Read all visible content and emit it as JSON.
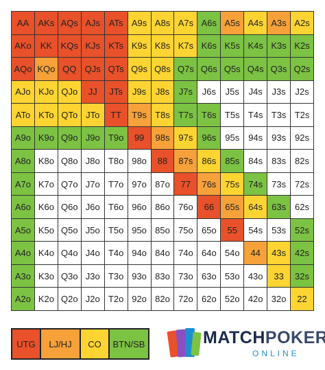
{
  "grid": {
    "hands": [
      [
        "AA",
        "AKs",
        "AQs",
        "AJs",
        "ATs",
        "A9s",
        "A8s",
        "A7s",
        "A6s",
        "A5s",
        "A4s",
        "A3s",
        "A2s"
      ],
      [
        "AKo",
        "KK",
        "KQs",
        "KJs",
        "KTs",
        "K9s",
        "K8s",
        "K7s",
        "K6s",
        "K5s",
        "K4s",
        "K3s",
        "K2s"
      ],
      [
        "AQo",
        "KQo",
        "QQ",
        "QJs",
        "QTs",
        "Q9s",
        "Q8s",
        "Q7s",
        "Q6s",
        "Q5s",
        "Q4s",
        "Q3s",
        "Q2s"
      ],
      [
        "AJo",
        "KJo",
        "QJo",
        "JJ",
        "JTs",
        "J9s",
        "J8s",
        "J7s",
        "J6s",
        "J5s",
        "J4s",
        "J3s",
        "J2s"
      ],
      [
        "ATo",
        "KTo",
        "QTo",
        "JTo",
        "TT",
        "T9s",
        "T8s",
        "T7s",
        "T6s",
        "T5s",
        "T4s",
        "T3s",
        "T2s"
      ],
      [
        "A9o",
        "K9o",
        "Q9o",
        "J9o",
        "T9o",
        "99",
        "98s",
        "97s",
        "96s",
        "95s",
        "94s",
        "93s",
        "92s"
      ],
      [
        "A8o",
        "K8o",
        "Q8o",
        "J8o",
        "T8o",
        "98o",
        "88",
        "87s",
        "86s",
        "85s",
        "84s",
        "83s",
        "82s"
      ],
      [
        "A7o",
        "K7o",
        "Q7o",
        "J7o",
        "T7o",
        "97o",
        "87o",
        "77",
        "76s",
        "75s",
        "74s",
        "73s",
        "72s"
      ],
      [
        "A6o",
        "K6o",
        "Q6o",
        "J6o",
        "T6o",
        "96o",
        "86o",
        "76o",
        "66",
        "65s",
        "64s",
        "63s",
        "62s"
      ],
      [
        "A5o",
        "K5o",
        "Q5o",
        "J5o",
        "T5o",
        "95o",
        "85o",
        "75o",
        "65o",
        "55",
        "54s",
        "53s",
        "52s"
      ],
      [
        "A4o",
        "K4o",
        "Q4o",
        "J4o",
        "T4o",
        "94o",
        "84o",
        "74o",
        "64o",
        "54o",
        "44",
        "43s",
        "42s"
      ],
      [
        "A3o",
        "K3o",
        "Q3o",
        "J3o",
        "T3o",
        "93o",
        "83o",
        "73o",
        "63o",
        "53o",
        "43o",
        "33",
        "32s"
      ],
      [
        "A2o",
        "K2o",
        "Q2o",
        "J2o",
        "T2o",
        "92o",
        "82o",
        "72o",
        "62o",
        "52o",
        "42o",
        "32o",
        "22"
      ]
    ],
    "colors": [
      [
        "#e8512a",
        "#e8512a",
        "#e8512a",
        "#e8512a",
        "#e8512a",
        "#fdd431",
        "#fdd431",
        "#fdd431",
        "#7cc243",
        "#f6a13a",
        "#fdd431",
        "#f6a13a",
        "#fdd431"
      ],
      [
        "#e8512a",
        "#e8512a",
        "#e8512a",
        "#e8512a",
        "#e8512a",
        "#fdd431",
        "#fdd431",
        "#fdd431",
        "#7cc243",
        "#7cc243",
        "#7cc243",
        "#7cc243",
        "#7cc243"
      ],
      [
        "#e8512a",
        "#f6a13a",
        "#e8512a",
        "#e8512a",
        "#e8512a",
        "#fdd431",
        "#fdd431",
        "#7cc243",
        "#7cc243",
        "#7cc243",
        "#7cc243",
        "#7cc243",
        "#7cc243"
      ],
      [
        "#fdd431",
        "#fdd431",
        "#fdd431",
        "#e8512a",
        "#e8512a",
        "#fdd431",
        "#fdd431",
        "#7cc243",
        "#ffffff",
        "#ffffff",
        "#ffffff",
        "#ffffff",
        "#ffffff"
      ],
      [
        "#fdd431",
        "#fdd431",
        "#fdd431",
        "#fdd431",
        "#e8512a",
        "#f6a13a",
        "#fdd431",
        "#7cc243",
        "#7cc243",
        "#ffffff",
        "#ffffff",
        "#ffffff",
        "#ffffff"
      ],
      [
        "#7cc243",
        "#7cc243",
        "#7cc243",
        "#7cc243",
        "#7cc243",
        "#e8512a",
        "#f6a13a",
        "#fdd431",
        "#7cc243",
        "#ffffff",
        "#ffffff",
        "#ffffff",
        "#ffffff"
      ],
      [
        "#7cc243",
        "#ffffff",
        "#ffffff",
        "#ffffff",
        "#ffffff",
        "#ffffff",
        "#e8512a",
        "#f6a13a",
        "#fdd431",
        "#7cc243",
        "#ffffff",
        "#ffffff",
        "#ffffff"
      ],
      [
        "#7cc243",
        "#ffffff",
        "#ffffff",
        "#ffffff",
        "#ffffff",
        "#ffffff",
        "#ffffff",
        "#e8512a",
        "#f6a13a",
        "#fdd431",
        "#7cc243",
        "#ffffff",
        "#ffffff"
      ],
      [
        "#7cc243",
        "#ffffff",
        "#ffffff",
        "#ffffff",
        "#ffffff",
        "#ffffff",
        "#ffffff",
        "#ffffff",
        "#e8512a",
        "#f6a13a",
        "#fdd431",
        "#7cc243",
        "#ffffff"
      ],
      [
        "#7cc243",
        "#ffffff",
        "#ffffff",
        "#ffffff",
        "#ffffff",
        "#ffffff",
        "#ffffff",
        "#ffffff",
        "#ffffff",
        "#e8512a",
        "#ffffff",
        "#ffffff",
        "#7cc243"
      ],
      [
        "#7cc243",
        "#ffffff",
        "#ffffff",
        "#ffffff",
        "#ffffff",
        "#ffffff",
        "#ffffff",
        "#ffffff",
        "#ffffff",
        "#ffffff",
        "#f6a13a",
        "#fdd431",
        "#7cc243"
      ],
      [
        "#7cc243",
        "#ffffff",
        "#ffffff",
        "#ffffff",
        "#ffffff",
        "#ffffff",
        "#ffffff",
        "#ffffff",
        "#ffffff",
        "#ffffff",
        "#ffffff",
        "#fdd431",
        "#7cc243"
      ],
      [
        "#7cc243",
        "#ffffff",
        "#ffffff",
        "#ffffff",
        "#ffffff",
        "#ffffff",
        "#ffffff",
        "#ffffff",
        "#ffffff",
        "#ffffff",
        "#ffffff",
        "#ffffff",
        "#fdd431"
      ]
    ]
  },
  "legend": [
    {
      "label": "UTG",
      "color": "#e8512a"
    },
    {
      "label": "LJ/HJ",
      "color": "#f6a13a"
    },
    {
      "label": "CO",
      "color": "#fdd431"
    },
    {
      "label": "BTN/SB",
      "color": "#7cc243"
    }
  ],
  "logo": {
    "first": "MATCH",
    "second": "POKER",
    "tagline": "ONLINE"
  }
}
